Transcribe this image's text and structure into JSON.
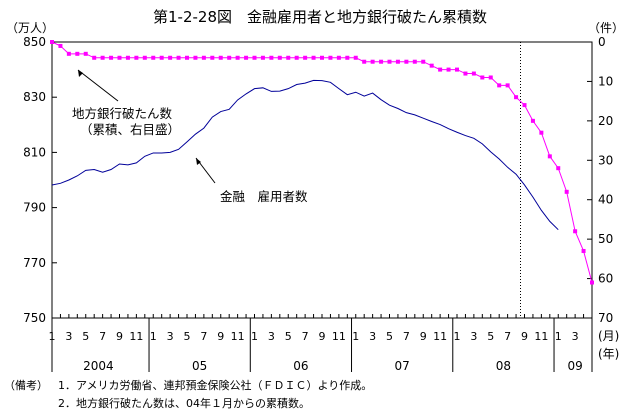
{
  "chart_data": {
    "type": "line",
    "title": "第1-2-28図　金融雇用者と地方銀行破たん累積数",
    "y_left": {
      "unit": "（万人）",
      "ticks": [
        "850",
        "830",
        "810",
        "790",
        "770",
        "750"
      ],
      "range": [
        750,
        850
      ]
    },
    "y_right": {
      "unit": "（件）",
      "ticks": [
        "0",
        "10",
        "20",
        "30",
        "40",
        "50",
        "60",
        "70"
      ],
      "range": [
        0,
        70
      ],
      "inverted": true
    },
    "x": {
      "month_unit": "(月)",
      "year_unit": "(年)",
      "years": [
        "2004",
        "05",
        "06",
        "07",
        "08",
        "09"
      ],
      "month_ticks": [
        "1",
        "3",
        "5",
        "7",
        "9",
        "11"
      ],
      "month_ticks_last": [
        "1",
        "3"
      ],
      "months": [
        "2004-01",
        "2004-02",
        "2004-03",
        "2004-04",
        "2004-05",
        "2004-06",
        "2004-07",
        "2004-08",
        "2004-09",
        "2004-10",
        "2004-11",
        "2004-12",
        "2005-01",
        "2005-02",
        "2005-03",
        "2005-04",
        "2005-05",
        "2005-06",
        "2005-07",
        "2005-08",
        "2005-09",
        "2005-10",
        "2005-11",
        "2005-12",
        "2006-01",
        "2006-02",
        "2006-03",
        "2006-04",
        "2006-05",
        "2006-06",
        "2006-07",
        "2006-08",
        "2006-09",
        "2006-10",
        "2006-11",
        "2006-12",
        "2007-01",
        "2007-02",
        "2007-03",
        "2007-04",
        "2007-05",
        "2007-06",
        "2007-07",
        "2007-08",
        "2007-09",
        "2007-10",
        "2007-11",
        "2007-12",
        "2008-01",
        "2008-02",
        "2008-03",
        "2008-04",
        "2008-05",
        "2008-06",
        "2008-07",
        "2008-08",
        "2008-09",
        "2008-10",
        "2008-11",
        "2008-12",
        "2009-01",
        "2009-02",
        "2009-03",
        "2009-04",
        "2009-05"
      ]
    },
    "series": [
      {
        "name": "金融　雇用者数",
        "axis": "left",
        "color": "#000099",
        "values": [
          798.2,
          798.8,
          800,
          801.5,
          803.5,
          803.8,
          802.8,
          803.8,
          805.8,
          805.5,
          806.2,
          808.6,
          809.8,
          809.8,
          810,
          811.1,
          813.8,
          816.6,
          818.8,
          822.8,
          824.8,
          825.6,
          829,
          831.2,
          833.1,
          833.4,
          832.1,
          832.2,
          833.1,
          834.6,
          835.1,
          836.1,
          836,
          835.4,
          833.1,
          830.9,
          831.8,
          830.4,
          831.5,
          829.1,
          827.1,
          825.9,
          824.4,
          823.6,
          822.4,
          821.2,
          820.1,
          818.6,
          817.3,
          816.1,
          815.1,
          813.1,
          810.2,
          807.6,
          804.6,
          802.1,
          798.2,
          793.8,
          789,
          785,
          782
        ]
      },
      {
        "name": "地方銀行破たん数（累積、右目盛）",
        "axis": "right",
        "color": "#ff00ff",
        "values": [
          0,
          1,
          3,
          3,
          3,
          4,
          4,
          4,
          4,
          4,
          4,
          4,
          4,
          4,
          4,
          4,
          4,
          4,
          4,
          4,
          4,
          4,
          4,
          4,
          4,
          4,
          4,
          4,
          4,
          4,
          4,
          4,
          4,
          4,
          4,
          4,
          4,
          5,
          5,
          5,
          5,
          5,
          5,
          5,
          5,
          6,
          7,
          7,
          7,
          8,
          8,
          9,
          9,
          11,
          11,
          14,
          16,
          20,
          23,
          29,
          32,
          38,
          48,
          53,
          61
        ]
      }
    ],
    "event_line_month": "2008-09",
    "annotations": {
      "banks_line1": "地方銀行破たん数",
      "banks_line2": "（累積、右目盛）",
      "employees": "金融　雇用者数"
    }
  },
  "notes": {
    "label": "（備考）",
    "line1": "1．アメリカ労働省、連邦預金保険公社（ＦＤＩＣ）より作成。",
    "line2": "2．地方銀行破たん数は、04年１月からの累積数。"
  }
}
